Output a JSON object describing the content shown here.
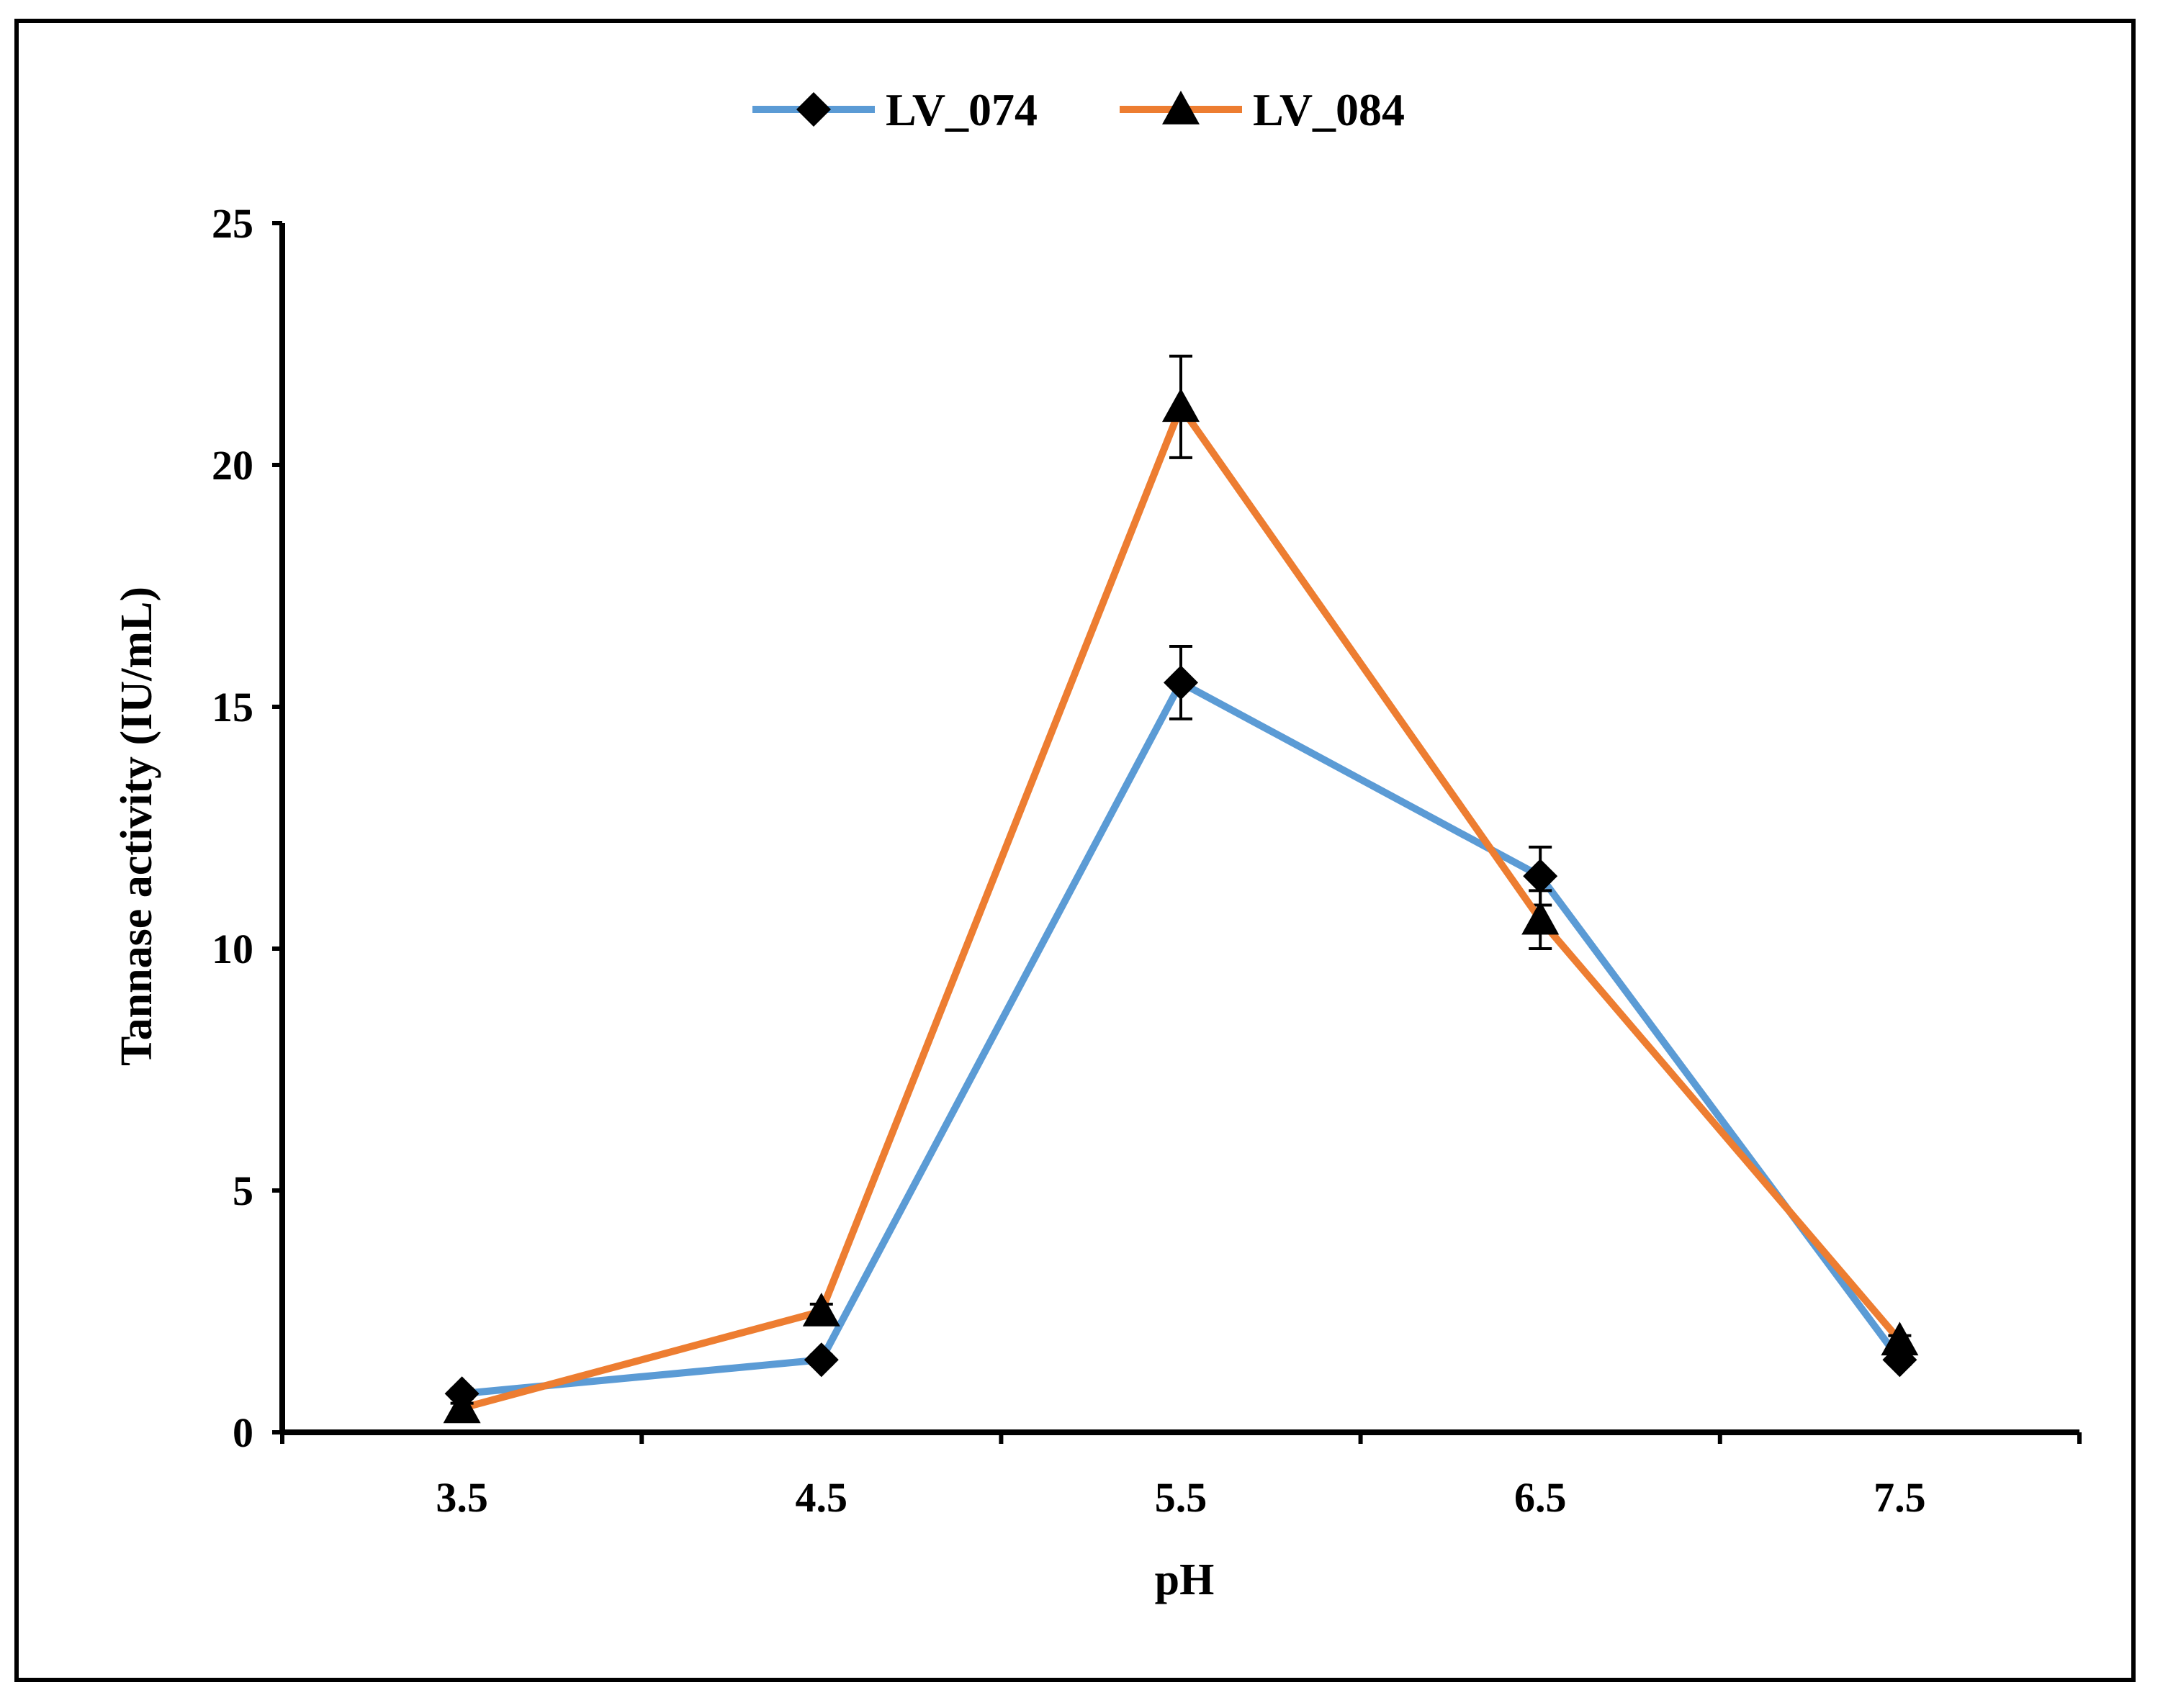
{
  "chart_data": {
    "type": "line",
    "title": "",
    "xlabel": "pH",
    "ylabel": "Tannase activity (IU/mL)",
    "x": [
      3.5,
      4.5,
      5.5,
      6.5,
      7.5
    ],
    "x_tick_labels": [
      "3.5",
      "4.5",
      "5.5",
      "6.5",
      "7.5"
    ],
    "y_tick_labels": [
      "0",
      "5",
      "10",
      "15",
      "20",
      "25"
    ],
    "xlim": [
      3,
      8
    ],
    "ylim": [
      0,
      25
    ],
    "grid": false,
    "legend": "top-center",
    "series": [
      {
        "name": "LV_074",
        "marker": "diamond",
        "color": "#5B9BD5",
        "values": [
          0.8,
          1.5,
          15.5,
          11.5,
          1.5
        ],
        "errors": [
          0.1,
          0.1,
          0.75,
          0.6,
          0.1
        ]
      },
      {
        "name": "LV_084",
        "marker": "triangle",
        "color": "#ED7D31",
        "values": [
          0.5,
          2.5,
          21.2,
          10.6,
          1.9
        ],
        "errors": [
          0.1,
          0.15,
          1.05,
          0.6,
          0.1
        ]
      }
    ]
  }
}
